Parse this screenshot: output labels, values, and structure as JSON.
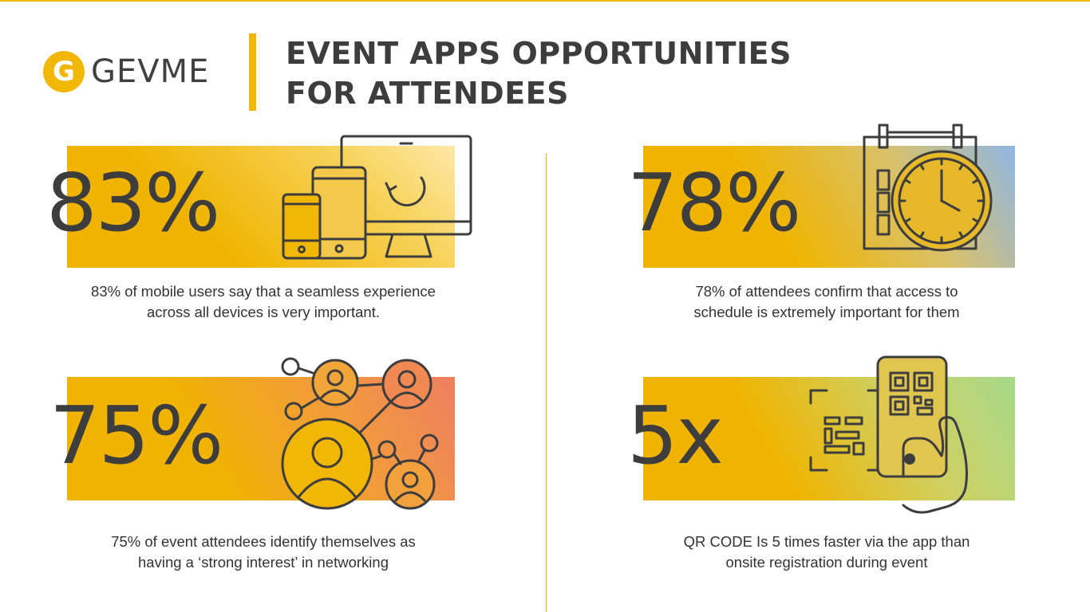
{
  "brand": {
    "logo_letter": "G",
    "logo_text": "GEVME"
  },
  "title": {
    "line1": "EVENT APPS OPPORTUNITIES",
    "line2": "FOR ATTENDEES"
  },
  "colors": {
    "accent": "#f2b705",
    "text": "#3d3d3d"
  },
  "stats": [
    {
      "value": "83%",
      "description_line1": "83% of mobile users say that a seamless experience",
      "description_line2": "across all devices is very important.",
      "icon": "devices-icon"
    },
    {
      "value": "78%",
      "description_line1": "78% of attendees confirm that access to",
      "description_line2": "schedule is extremely important for them",
      "icon": "schedule-clock-icon"
    },
    {
      "value": "75%",
      "description_line1": "75% of event attendees identify themselves as",
      "description_line2": "having a ‘strong interest’ in networking",
      "icon": "networking-icon"
    },
    {
      "value": "5x",
      "description_line1": "QR CODE Is 5 times faster via the app than",
      "description_line2": "onsite registration during event",
      "icon": "qr-phone-icon"
    }
  ]
}
